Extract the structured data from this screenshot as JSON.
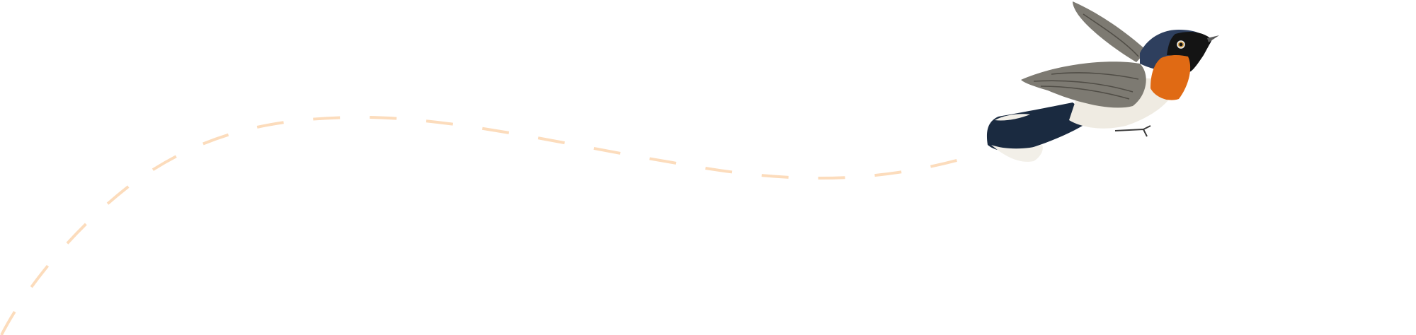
{
  "scene": {
    "background": "#ffffff",
    "flight_path_color": "#fcdcbc",
    "bird": {
      "colors": {
        "head": "#2e3f5e",
        "mask": "#141414",
        "throat": "#e06a14",
        "belly": "#efebe2",
        "wing": "#7d7a72",
        "tail": "#1a2a40",
        "tail_tip": "#f2efe8"
      }
    }
  }
}
